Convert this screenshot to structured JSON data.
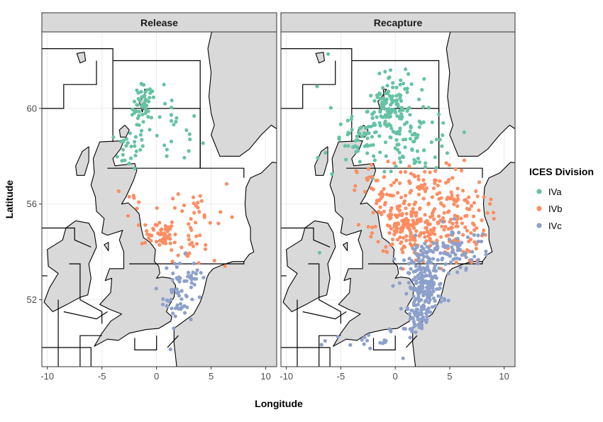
{
  "chart_data": {
    "type": "scatter",
    "xlabel": "Longitude",
    "ylabel": "Latitude",
    "xlim": [
      -10.5,
      11
    ],
    "ylim": [
      49.2,
      63.2
    ],
    "x_ticks": [
      -10,
      -5,
      0,
      5,
      10
    ],
    "y_ticks": [
      52,
      56,
      60
    ],
    "x_tick_labels": [
      "-10",
      "-5",
      "0",
      "5",
      "10"
    ],
    "y_tick_labels": [
      "52",
      "56",
      "60"
    ],
    "grid": true,
    "legend": {
      "title": "ICES Division",
      "placement": "right",
      "entries": [
        {
          "label": "IVa",
          "color": "#66c2a5"
        },
        {
          "label": "IVb",
          "color": "#fc8d62"
        },
        {
          "label": "IVc",
          "color": "#8da0cb"
        }
      ]
    },
    "panels": [
      {
        "title": "Release",
        "series": [
          {
            "name": "IVa",
            "color": "#66c2a5",
            "clusters": [
              {
                "lon": -1.2,
                "lat": 60.0,
                "sx": 0.5,
                "sy": 0.5,
                "n": 45
              },
              {
                "lon": -2.5,
                "lat": 58.3,
                "sx": 0.7,
                "sy": 0.4,
                "n": 25
              },
              {
                "lon": 1.5,
                "lat": 59.0,
                "sx": 1.3,
                "sy": 0.8,
                "n": 22
              },
              {
                "lon": -0.8,
                "lat": 60.6,
                "sx": 0.5,
                "sy": 0.2,
                "n": 8
              }
            ]
          },
          {
            "name": "IVb",
            "color": "#fc8d62",
            "clusters": [
              {
                "lon": 0.2,
                "lat": 54.8,
                "sx": 0.8,
                "sy": 0.3,
                "n": 45
              },
              {
                "lon": 3.5,
                "lat": 55.5,
                "sx": 2.0,
                "sy": 0.9,
                "n": 40
              },
              {
                "lon": -2.3,
                "lat": 56.2,
                "sx": 0.3,
                "sy": 0.3,
                "n": 6
              },
              {
                "lon": 3.0,
                "lat": 54.0,
                "sx": 1.2,
                "sy": 0.3,
                "n": 15
              }
            ]
          },
          {
            "name": "IVc",
            "color": "#8da0cb",
            "clusters": [
              {
                "lon": 2.0,
                "lat": 52.3,
                "sx": 0.7,
                "sy": 0.7,
                "n": 60
              },
              {
                "lon": 3.5,
                "lat": 53.0,
                "sx": 0.6,
                "sy": 0.3,
                "n": 12
              }
            ]
          }
        ]
      },
      {
        "title": "Recapture",
        "series": [
          {
            "name": "IVa",
            "color": "#66c2a5",
            "clusters": [
              {
                "lon": -0.5,
                "lat": 59.9,
                "sx": 1.0,
                "sy": 0.5,
                "n": 110
              },
              {
                "lon": -3.5,
                "lat": 58.6,
                "sx": 1.1,
                "sy": 0.5,
                "n": 45
              },
              {
                "lon": 2.0,
                "lat": 58.6,
                "sx": 1.8,
                "sy": 0.6,
                "n": 70
              },
              {
                "lon": 0.5,
                "lat": 61.0,
                "sx": 1.5,
                "sy": 0.4,
                "n": 18
              },
              {
                "lon": -6.5,
                "lat": 60.0,
                "sx": 0.8,
                "sy": 1.5,
                "n": 6
              }
            ]
          },
          {
            "name": "IVb",
            "color": "#fc8d62",
            "clusters": [
              {
                "lon": 1.0,
                "lat": 55.0,
                "sx": 1.5,
                "sy": 0.6,
                "n": 170
              },
              {
                "lon": 5.0,
                "lat": 55.3,
                "sx": 1.7,
                "sy": 0.9,
                "n": 140
              },
              {
                "lon": -1.5,
                "lat": 56.5,
                "sx": 1.0,
                "sy": 0.6,
                "n": 40
              },
              {
                "lon": 3.0,
                "lat": 56.8,
                "sx": 2.0,
                "sy": 0.5,
                "n": 50
              }
            ]
          },
          {
            "name": "IVc",
            "color": "#8da0cb",
            "clusters": [
              {
                "lon": 2.8,
                "lat": 52.5,
                "sx": 0.8,
                "sy": 0.5,
                "n": 160
              },
              {
                "lon": 2.0,
                "lat": 51.3,
                "sx": 0.5,
                "sy": 0.3,
                "n": 50
              },
              {
                "lon": 3.5,
                "lat": 53.8,
                "sx": 1.5,
                "sy": 0.4,
                "n": 90
              },
              {
                "lon": 6.0,
                "lat": 54.3,
                "sx": 1.4,
                "sy": 0.4,
                "n": 35
              },
              {
                "lon": -1.5,
                "lat": 50.3,
                "sx": 2.0,
                "sy": 0.3,
                "n": 20
              }
            ]
          }
        ]
      }
    ]
  }
}
